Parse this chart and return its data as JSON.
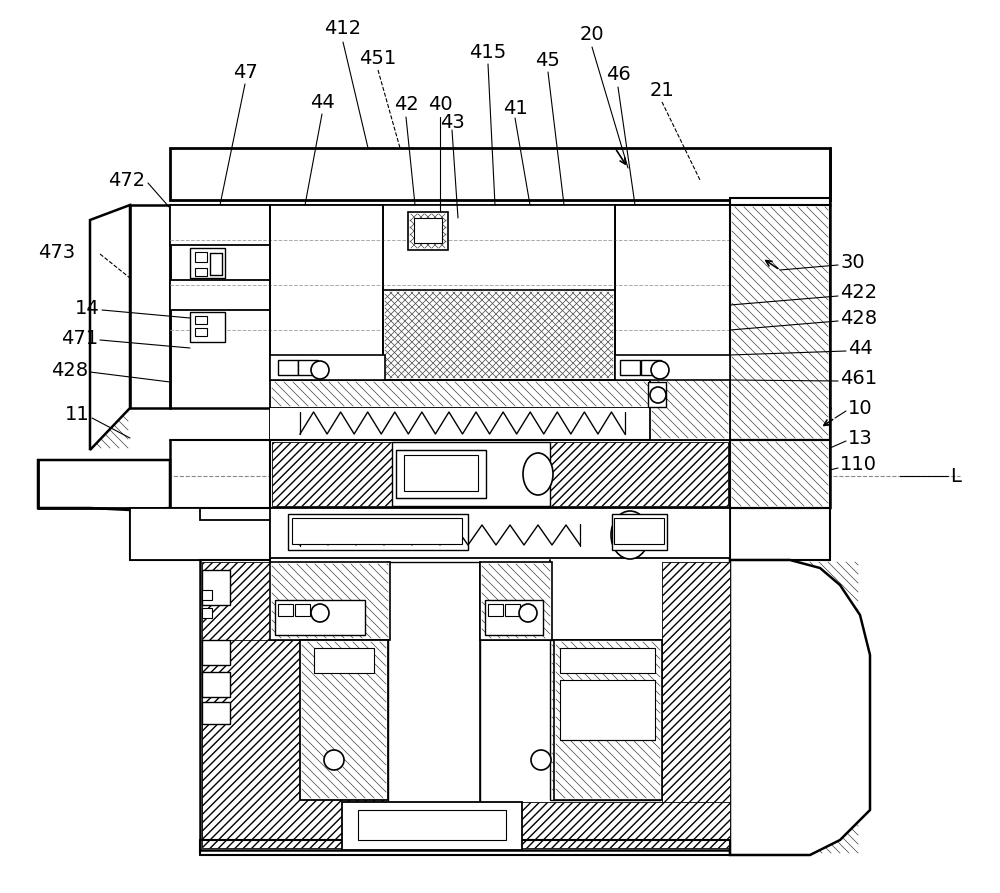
{
  "bg": "#ffffff",
  "lc": "#000000",
  "gray": "#888888",
  "lw_main": 1.8,
  "lw_med": 1.3,
  "lw_thin": 0.8,
  "fs_label": 14
}
